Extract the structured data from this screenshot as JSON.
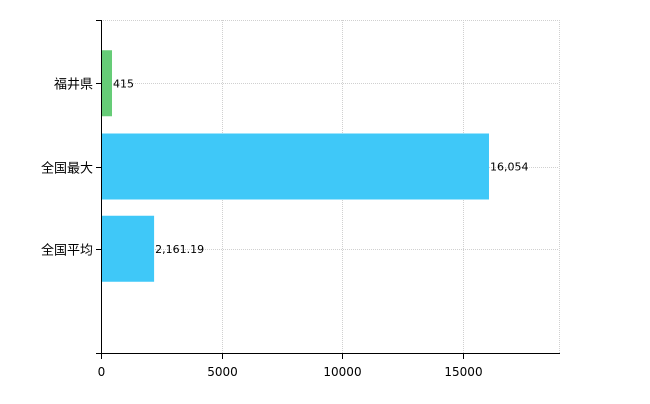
{
  "chart_data": {
    "type": "bar",
    "orientation": "horizontal",
    "categories": [
      "福井県",
      "全国最大",
      "全国平均"
    ],
    "values": [
      415,
      16054,
      2161.19
    ],
    "value_labels": [
      "415",
      "16,054",
      "2,161.19"
    ],
    "bar_colors": [
      "#66cc77",
      "#3fc8f8",
      "#3fc8f8"
    ],
    "title": "",
    "xlabel": "",
    "ylabel": "",
    "xlim": [
      0,
      19000
    ],
    "x_ticks": [
      0,
      5000,
      10000,
      15000
    ],
    "x_tick_labels": [
      "0",
      "5000",
      "10000",
      "15000"
    ],
    "grid": true
  }
}
